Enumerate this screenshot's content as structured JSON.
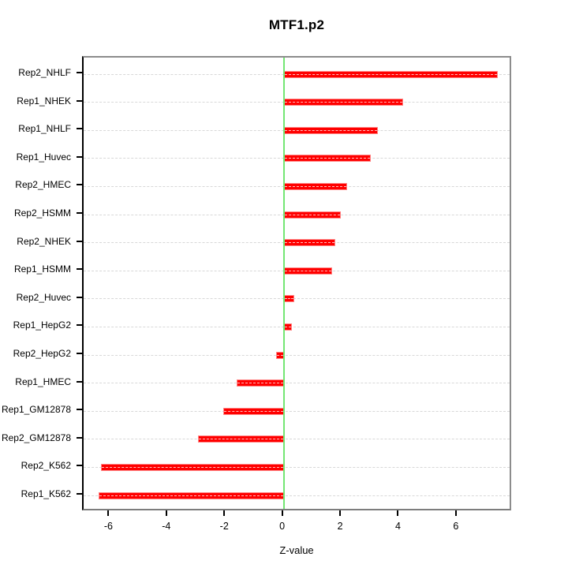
{
  "title": "MTF1.p2",
  "axis": {
    "x_label": "Z-value",
    "x_tick_labels": [
      "-6",
      "-4",
      "-2",
      "0",
      "2",
      "4",
      "6"
    ]
  },
  "colors": {
    "bar_fill": "#ff0000",
    "bar_edge": "#ff8585",
    "zero_line_green": "#74e674",
    "gridline": "#d8d8d8",
    "box_border": "#8c8c8c",
    "axis_black": "#000000",
    "background": "#ffffff"
  },
  "chart_data": {
    "type": "bar",
    "orientation": "horizontal",
    "title": "MTF1.p2",
    "xlabel": "Z-value",
    "ylabel": "",
    "categories_top_to_bottom": [
      "Rep2_NHLF",
      "Rep1_NHEK",
      "Rep1_NHLF",
      "Rep1_Huvec",
      "Rep2_HMEC",
      "Rep2_HSMM",
      "Rep2_NHEK",
      "Rep1_HSMM",
      "Rep2_Huvec",
      "Rep1_HepG2",
      "Rep2_HepG2",
      "Rep1_HMEC",
      "Rep1_GM12878",
      "Rep2_GM12878",
      "Rep2_K562",
      "Rep1_K562"
    ],
    "values": [
      7.4,
      4.13,
      3.25,
      3.02,
      2.19,
      1.98,
      1.79,
      1.67,
      0.36,
      0.28,
      -0.25,
      -1.63,
      -2.08,
      -2.95,
      -6.3,
      -6.38
    ],
    "xticks": [
      -6,
      -4,
      -2,
      0,
      2,
      4,
      6
    ],
    "xlim": [
      -6.91,
      7.91
    ],
    "zero_reference_line": 0,
    "grid": "dashed horizontal line at each category, drawn over bars",
    "legend": "none"
  }
}
